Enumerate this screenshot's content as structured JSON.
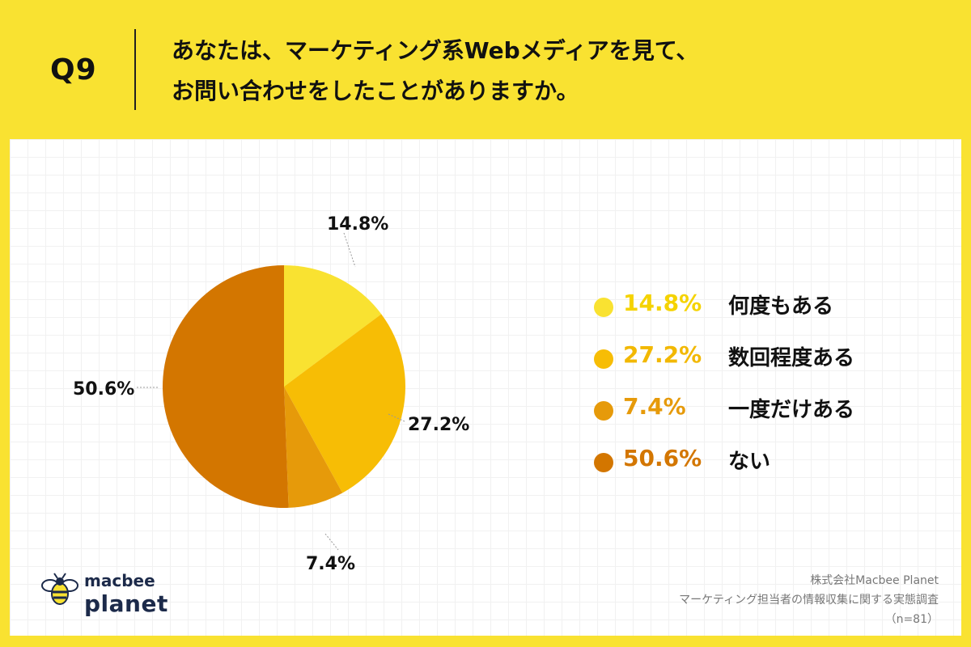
{
  "header": {
    "q_label": "Q9",
    "question_line1": "あなたは、マーケティング系Webメディアを見て、",
    "question_line2": "お問い合わせをしたことがありますか。"
  },
  "chart_data": {
    "type": "pie",
    "slices": [
      {
        "label": "何度もある",
        "value": 14.8,
        "display": "14.8%",
        "color": "#F9E231"
      },
      {
        "label": "数回程度ある",
        "value": 27.2,
        "display": "27.2%",
        "color": "#F7BD05"
      },
      {
        "label": "一度だけある",
        "value": 7.4,
        "display": "7.4%",
        "color": "#E69A0A"
      },
      {
        "label": "ない",
        "value": 50.6,
        "display": "50.6%",
        "color": "#D37600"
      }
    ]
  },
  "legend": {
    "items": [
      {
        "pct": "14.8%",
        "label": "何度もある",
        "color": "#F9E231",
        "text_color": "#F5D300"
      },
      {
        "pct": "27.2%",
        "label": "数回程度ある",
        "color": "#F7BD05",
        "text_color": "#F2B800"
      },
      {
        "pct": "7.4%",
        "label": "一度だけある",
        "color": "#E69A0A",
        "text_color": "#E69A0A"
      },
      {
        "pct": "50.6%",
        "label": "ない",
        "color": "#D37600",
        "text_color": "#D37600"
      }
    ]
  },
  "logo": {
    "top": "macbee",
    "bottom": "planet"
  },
  "source": {
    "company": "株式会社Macbee Planet",
    "survey": "マーケティング担当者の情報収集に関する実態調査",
    "n": "（n=81）"
  }
}
